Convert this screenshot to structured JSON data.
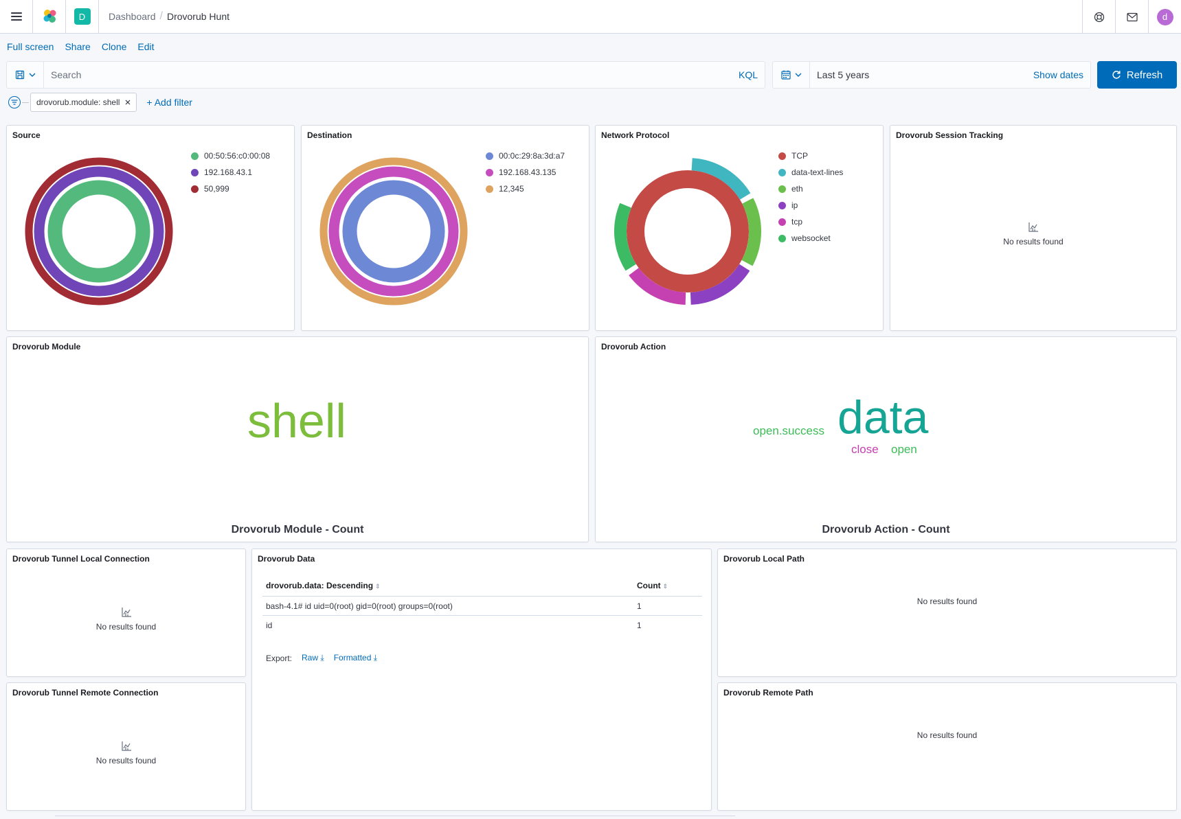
{
  "header": {
    "space_initial": "D",
    "breadcrumb_parent": "Dashboard",
    "breadcrumb_current": "Drovorub Hunt",
    "user_initial": "d"
  },
  "actions": {
    "full_screen": "Full screen",
    "share": "Share",
    "clone": "Clone",
    "edit": "Edit"
  },
  "query": {
    "placeholder": "Search",
    "language": "KQL"
  },
  "time": {
    "range": "Last 5 years",
    "show_dates": "Show dates",
    "refresh": "Refresh"
  },
  "filters": {
    "pill": "drovorub.module: shell",
    "add_filter": "+ Add filter"
  },
  "panels": {
    "source": {
      "title": "Source",
      "legend": [
        {
          "label": "00:50:56:c0:00:08",
          "color": "#54b97c"
        },
        {
          "label": "192.168.43.1",
          "color": "#6f45b8"
        },
        {
          "label": "50,999",
          "color": "#a12c34"
        }
      ]
    },
    "destination": {
      "title": "Destination",
      "legend": [
        {
          "label": "00:0c:29:8a:3d:a7",
          "color": "#6d89d5"
        },
        {
          "label": "192.168.43.135",
          "color": "#c54dbe"
        },
        {
          "label": "12,345",
          "color": "#dea35f"
        }
      ]
    },
    "protocol": {
      "title": "Network Protocol",
      "legend": [
        {
          "label": "TCP",
          "color": "#c34a45"
        },
        {
          "label": "data-text-lines",
          "color": "#3fb6c0"
        },
        {
          "label": "eth",
          "color": "#6bbf4c"
        },
        {
          "label": "ip",
          "color": "#8c40c2"
        },
        {
          "label": "tcp",
          "color": "#c540b0"
        },
        {
          "label": "websocket",
          "color": "#3dbb64"
        }
      ]
    },
    "session": {
      "title": "Drovorub Session Tracking",
      "empty": "No results found"
    },
    "module": {
      "title": "Drovorub Module",
      "words": [
        {
          "text": "shell",
          "color": "#7cbd3c"
        }
      ],
      "footer": "Drovorub Module - Count"
    },
    "action": {
      "title": "Drovorub Action",
      "words": [
        {
          "text": "data",
          "color": "#16a594"
        },
        {
          "text": "open.success",
          "color": "#3cbb58"
        },
        {
          "text": "close",
          "color": "#c540b0"
        },
        {
          "text": "open",
          "color": "#3cbb58"
        }
      ],
      "footer": "Drovorub Action - Count"
    },
    "tunnel_local": {
      "title": "Drovorub Tunnel Local Connection",
      "empty": "No results found"
    },
    "tunnel_remote": {
      "title": "Drovorub Tunnel Remote Connection",
      "empty": "No results found"
    },
    "data_table": {
      "title": "Drovorub Data",
      "columns": [
        "drovorub.data: Descending",
        "Count"
      ],
      "rows": [
        [
          "bash-4.1# id uid=0(root) gid=0(root) groups=0(root)",
          "1"
        ],
        [
          "id",
          "1"
        ]
      ],
      "export_label": "Export:",
      "export_raw": "Raw",
      "export_formatted": "Formatted"
    },
    "local_path": {
      "title": "Drovorub Local Path",
      "empty": "No results found"
    },
    "remote_path": {
      "title": "Drovorub Remote Path",
      "empty": "No results found"
    }
  },
  "chart_data": [
    {
      "type": "pie",
      "title": "Source",
      "rings": [
        {
          "labels": [
            "00:50:56:c0:00:08"
          ],
          "values": [
            1
          ]
        },
        {
          "labels": [
            "192.168.43.1"
          ],
          "values": [
            1
          ]
        },
        {
          "labels": [
            "50,999"
          ],
          "values": [
            1
          ]
        }
      ]
    },
    {
      "type": "pie",
      "title": "Destination",
      "rings": [
        {
          "labels": [
            "00:0c:29:8a:3d:a7"
          ],
          "values": [
            1
          ]
        },
        {
          "labels": [
            "192.168.43.135"
          ],
          "values": [
            1
          ]
        },
        {
          "labels": [
            "12,345"
          ],
          "values": [
            1
          ]
        }
      ]
    },
    {
      "type": "pie",
      "title": "Network Protocol",
      "rings": [
        {
          "labels": [
            "TCP"
          ],
          "values": [
            1
          ]
        },
        {
          "labels": [
            "data-text-lines",
            "eth",
            "ip",
            "tcp",
            "websocket"
          ],
          "values": [
            0.165,
            0.165,
            0.165,
            0.155,
            0.165
          ]
        }
      ]
    }
  ]
}
